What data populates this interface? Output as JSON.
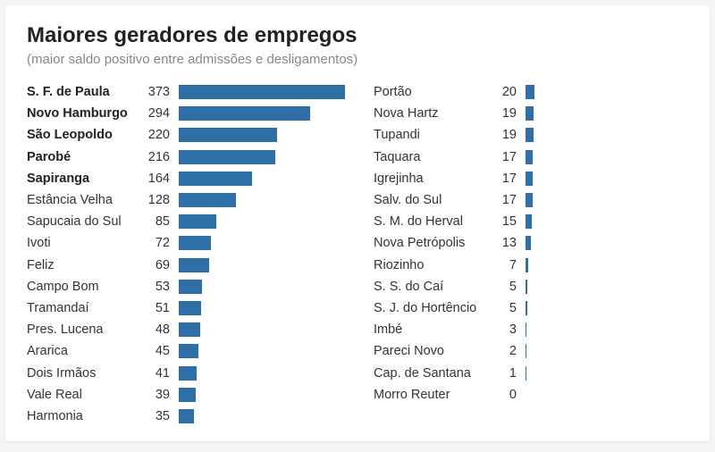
{
  "title": "Maiores geradores de empregos",
  "subtitle": "(maior saldo positivo entre admissões e desligamentos)",
  "bar_color": "#2f6fa7",
  "max_value": 373,
  "left_column": [
    {
      "label": "S. F. de Paula",
      "value": 373,
      "bold": true
    },
    {
      "label": "Novo Hamburgo",
      "value": 294,
      "bold": true
    },
    {
      "label": "São Leopoldo",
      "value": 220,
      "bold": true
    },
    {
      "label": "Parobé",
      "value": 216,
      "bold": true
    },
    {
      "label": "Sapiranga",
      "value": 164,
      "bold": true
    },
    {
      "label": "Estância Velha",
      "value": 128,
      "bold": false
    },
    {
      "label": "Sapucaia do Sul",
      "value": 85,
      "bold": false
    },
    {
      "label": "Ivoti",
      "value": 72,
      "bold": false
    },
    {
      "label": "Feliz",
      "value": 69,
      "bold": false
    },
    {
      "label": "Campo Bom",
      "value": 53,
      "bold": false
    },
    {
      "label": "Tramandaí",
      "value": 51,
      "bold": false
    },
    {
      "label": "Pres. Lucena",
      "value": 48,
      "bold": false
    },
    {
      "label": "Ararica",
      "value": 45,
      "bold": false
    },
    {
      "label": "Dois Irmãos",
      "value": 41,
      "bold": false
    },
    {
      "label": "Vale Real",
      "value": 39,
      "bold": false
    },
    {
      "label": "Harmonia",
      "value": 35,
      "bold": false
    }
  ],
  "right_column": [
    {
      "label": "Portão",
      "value": 20,
      "bold": false
    },
    {
      "label": "Nova Hartz",
      "value": 19,
      "bold": false
    },
    {
      "label": "Tupandi",
      "value": 19,
      "bold": false
    },
    {
      "label": "Taquara",
      "value": 17,
      "bold": false
    },
    {
      "label": "Igrejinha",
      "value": 17,
      "bold": false
    },
    {
      "label": "Salv. do Sul",
      "value": 17,
      "bold": false
    },
    {
      "label": "S. M. do Herval",
      "value": 15,
      "bold": false
    },
    {
      "label": "Nova Petrópolis",
      "value": 13,
      "bold": false
    },
    {
      "label": "Riozinho",
      "value": 7,
      "bold": false
    },
    {
      "label": "S. S. do Caí",
      "value": 5,
      "bold": false
    },
    {
      "label": "S. J. do Hortêncio",
      "value": 5,
      "bold": false
    },
    {
      "label": "Imbé",
      "value": 3,
      "bold": false
    },
    {
      "label": "Pareci Novo",
      "value": 2,
      "bold": false
    },
    {
      "label": "Cap. de Santana",
      "value": 1,
      "bold": false
    },
    {
      "label": "Morro Reuter",
      "value": 0,
      "bold": false
    }
  ]
}
